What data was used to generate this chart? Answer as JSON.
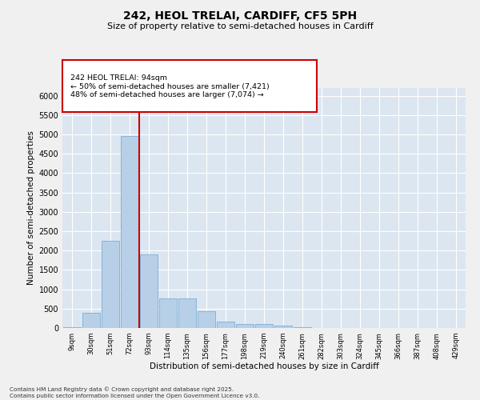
{
  "title1": "242, HEOL TRELAI, CARDIFF, CF5 5PH",
  "title2": "Size of property relative to semi-detached houses in Cardiff",
  "xlabel": "Distribution of semi-detached houses by size in Cardiff",
  "ylabel": "Number of semi-detached properties",
  "categories": [
    "9sqm",
    "30sqm",
    "51sqm",
    "72sqm",
    "93sqm",
    "114sqm",
    "135sqm",
    "156sqm",
    "177sqm",
    "198sqm",
    "219sqm",
    "240sqm",
    "261sqm",
    "282sqm",
    "303sqm",
    "324sqm",
    "345sqm",
    "366sqm",
    "387sqm",
    "408sqm",
    "429sqm"
  ],
  "values": [
    25,
    390,
    2250,
    4950,
    1900,
    760,
    760,
    430,
    160,
    110,
    100,
    60,
    30,
    10,
    10,
    5,
    2,
    2,
    2,
    2,
    2
  ],
  "bar_color": "#b8cfe8",
  "bar_edgecolor": "#7aaed6",
  "vline_color": "#cc0000",
  "vline_x": 4.0,
  "annotation_text": "242 HEOL TRELAI: 94sqm\n← 50% of semi-detached houses are smaller (7,421)\n48% of semi-detached houses are larger (7,074) →",
  "annotation_box_edgecolor": "#cc0000",
  "background_color": "#dce6f0",
  "grid_color": "#ffffff",
  "footer": "Contains HM Land Registry data © Crown copyright and database right 2025.\nContains public sector information licensed under the Open Government Licence v3.0.",
  "ylim": [
    0,
    6200
  ],
  "yticks": [
    0,
    500,
    1000,
    1500,
    2000,
    2500,
    3000,
    3500,
    4000,
    4500,
    5000,
    5500,
    6000
  ]
}
